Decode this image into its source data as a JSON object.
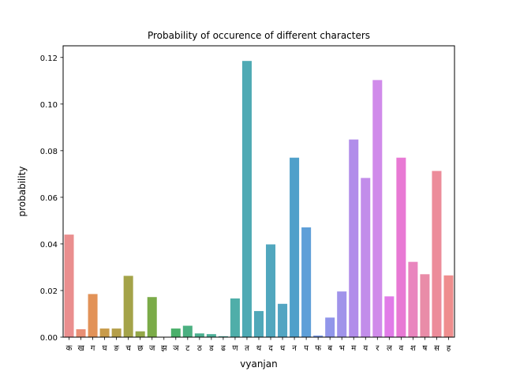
{
  "chart_data": {
    "type": "bar",
    "title": "Probability of occurence of different characters",
    "xlabel": "vyanjan",
    "ylabel": "probability",
    "ylim": [
      0,
      0.125
    ],
    "yticks": [
      0.0,
      0.02,
      0.04,
      0.06,
      0.08,
      0.1,
      0.12
    ],
    "ytick_labels": [
      "0.00",
      "0.02",
      "0.04",
      "0.06",
      "0.08",
      "0.10",
      "0.12"
    ],
    "grid": false,
    "categories": [
      "क",
      "ख",
      "ग",
      "घ",
      "ङ",
      "च",
      "छ",
      "ज",
      "झ",
      "ञ",
      "ट",
      "ठ",
      "ड",
      "ढ",
      "ण",
      "त",
      "थ",
      "द",
      "ध",
      "न",
      "प",
      "फ",
      "ब",
      "भ",
      "म",
      "य",
      "र",
      "ल",
      "व",
      "श",
      "ष",
      "स",
      "ह"
    ],
    "values": [
      0.044,
      0.0034,
      0.0185,
      0.0037,
      0.0037,
      0.0263,
      0.0025,
      0.0172,
      0.0,
      0.0037,
      0.0049,
      0.0016,
      0.0013,
      0.0004,
      0.0166,
      0.1185,
      0.0112,
      0.0398,
      0.0143,
      0.077,
      0.0471,
      0.0007,
      0.0084,
      0.0196,
      0.0848,
      0.0683,
      0.1103,
      0.0175,
      0.077,
      0.0323,
      0.027,
      0.0713,
      0.0265
    ],
    "colors": [
      "#ea8e8e",
      "#e98f75",
      "#e29258",
      "#c89b4a",
      "#b59f4a",
      "#a4a349",
      "#93a748",
      "#7bab48",
      "#53ae4b",
      "#4ab06a",
      "#4bb081",
      "#4bb08f",
      "#4db099",
      "#4eafa1",
      "#4faea9",
      "#4faab4",
      "#50a8b9",
      "#51a7be",
      "#52a5c2",
      "#4fa0ca",
      "#5e9fd8",
      "#7b9ae4",
      "#9196ea",
      "#a093ea",
      "#b18dea",
      "#c28dea",
      "#d08bea",
      "#e17be8",
      "#e879d4",
      "#e985be",
      "#e98ca8",
      "#ec8c9a",
      "#ef8e8e"
    ]
  }
}
